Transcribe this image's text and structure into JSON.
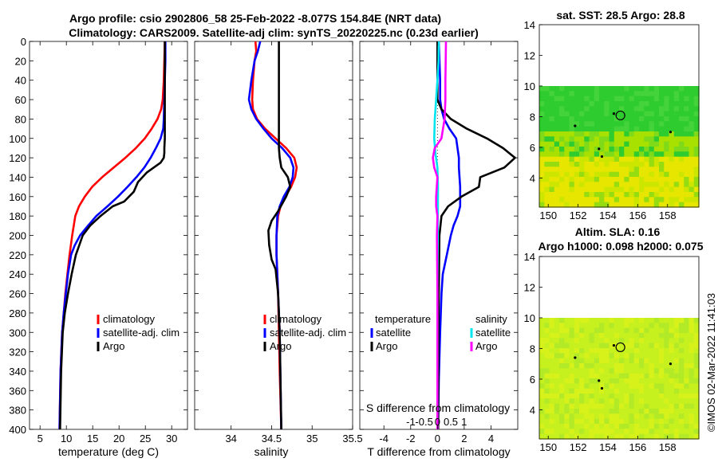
{
  "titles": {
    "line1": "Argo profile: csio 2902806_58 25-Feb-2022 -8.077S 154.84E (NRT data)",
    "line2": "Climatology: CARS2009. Satellite-adj clim: synTS_20220225.nc (0.23d earlier)"
  },
  "timestamp": "©IMOS 02-Mar-2022 11:41:03",
  "colors": {
    "climatology": "#ff0000",
    "satellite": "#0000ff",
    "argo": "#000000",
    "sal_sat": "#00e5ee",
    "sal_argo": "#ff00ff"
  },
  "chart_data": [
    {
      "type": "line",
      "title": "temperature",
      "xlabel": "temperature (deg C)",
      "xlim": [
        3,
        33
      ],
      "xticks": [
        5,
        10,
        15,
        20,
        25,
        30
      ],
      "ylim": [
        0,
        400
      ],
      "yticks": [
        0,
        20,
        40,
        60,
        80,
        100,
        120,
        140,
        160,
        180,
        200,
        220,
        240,
        260,
        280,
        300,
        320,
        340,
        360,
        380,
        400
      ],
      "legend": [
        "climatology",
        "satellite-adj. clim",
        "Argo"
      ],
      "series": [
        {
          "name": "climatology",
          "color": "#ff0000",
          "x": [
            28.7,
            28.6,
            28.5,
            28.3,
            28.0,
            27.3,
            26.2,
            24.9,
            23.2,
            21.2,
            19.0,
            16.8,
            14.9,
            13.5,
            12.4,
            11.7,
            11.1,
            10.6,
            10.2,
            9.8,
            9.5,
            9.2,
            8.9,
            8.7
          ],
          "depth": [
            0,
            20,
            40,
            60,
            70,
            80,
            90,
            100,
            110,
            120,
            130,
            140,
            150,
            160,
            170,
            180,
            200,
            220,
            240,
            260,
            280,
            300,
            340,
            400
          ]
        },
        {
          "name": "satellite-adj. clim",
          "color": "#0000ff",
          "x": [
            28.8,
            28.8,
            28.7,
            28.6,
            28.5,
            28.4,
            27.9,
            27.0,
            26.0,
            24.8,
            23.3,
            21.6,
            19.8,
            17.8,
            15.7,
            14.1,
            12.6,
            11.6,
            10.9,
            10.3,
            9.9,
            9.5,
            9.2,
            8.9,
            8.7
          ],
          "depth": [
            0,
            20,
            40,
            60,
            80,
            90,
            100,
            110,
            120,
            130,
            140,
            150,
            160,
            170,
            180,
            190,
            200,
            210,
            220,
            240,
            260,
            280,
            300,
            340,
            400
          ]
        },
        {
          "name": "Argo",
          "color": "#000000",
          "x": [
            28.7,
            28.7,
            28.7,
            28.7,
            28.6,
            28.6,
            28.5,
            27.9,
            25.3,
            23.6,
            22.8,
            21.0,
            18.8,
            16.5,
            14.5,
            13.1,
            11.8,
            11.0,
            10.3,
            9.7,
            9.3,
            9.0,
            8.8
          ],
          "depth": [
            0,
            40,
            80,
            100,
            110,
            115,
            120,
            125,
            135,
            145,
            155,
            165,
            170,
            180,
            190,
            200,
            220,
            240,
            260,
            280,
            300,
            340,
            400
          ]
        }
      ]
    },
    {
      "type": "line",
      "title": "salinity",
      "xlabel": "salinity",
      "xlim": [
        33.55,
        35.5
      ],
      "xticks": [
        34,
        34.5,
        35,
        35.5
      ],
      "ylim": [
        0,
        400
      ],
      "legend": [
        "climatology",
        "satellite-adj. clim",
        "Argo"
      ],
      "series": [
        {
          "name": "climatology",
          "color": "#ff0000",
          "x": [
            34.3,
            34.31,
            34.29,
            34.27,
            34.26,
            34.27,
            34.32,
            34.42,
            34.55,
            34.68,
            34.78,
            34.81,
            34.79,
            34.74,
            34.67,
            34.61,
            34.58,
            34.56,
            34.56,
            34.57,
            34.58,
            34.59,
            34.6,
            34.61,
            34.62
          ],
          "depth": [
            0,
            10,
            20,
            40,
            60,
            70,
            80,
            90,
            100,
            110,
            120,
            130,
            140,
            150,
            160,
            170,
            180,
            200,
            220,
            240,
            260,
            300,
            340,
            370,
            400
          ]
        },
        {
          "name": "satellite-adj. clim",
          "color": "#0000ff",
          "x": [
            34.36,
            34.33,
            34.29,
            34.25,
            34.22,
            34.25,
            34.31,
            34.4,
            34.5,
            34.63,
            34.73,
            34.77,
            34.76,
            34.72,
            34.65,
            34.6,
            34.57,
            34.56,
            34.56,
            34.57,
            34.58,
            34.6,
            34.61,
            34.62
          ],
          "depth": [
            0,
            10,
            20,
            40,
            60,
            70,
            80,
            90,
            100,
            110,
            120,
            130,
            140,
            150,
            160,
            170,
            180,
            200,
            220,
            240,
            260,
            300,
            350,
            400
          ]
        },
        {
          "name": "Argo",
          "color": "#000000",
          "x": [
            34.59,
            34.59,
            34.59,
            34.59,
            34.6,
            34.62,
            34.7,
            34.73,
            34.68,
            34.58,
            34.5,
            34.46,
            34.47,
            34.5,
            34.55,
            34.58,
            34.6,
            34.61,
            34.62
          ],
          "depth": [
            0,
            40,
            80,
            110,
            120,
            130,
            140,
            150,
            160,
            175,
            185,
            195,
            210,
            225,
            235,
            260,
            300,
            350,
            400
          ]
        }
      ]
    },
    {
      "type": "line",
      "title": "difference from climatology",
      "xlabel": "T difference from climatology",
      "xlabel_top": "S difference from climatology",
      "xlim": [
        -5.8,
        6.0
      ],
      "xticks": [
        -4,
        -2,
        0,
        2,
        4
      ],
      "xticks_top": [
        -1,
        -0.5,
        0,
        0.5,
        1
      ],
      "ylim": [
        0,
        400
      ],
      "legend_titles": [
        "temperature",
        "salinity"
      ],
      "legend": [
        "satellite",
        "Argo",
        "satellite",
        "Argo"
      ],
      "series": [
        {
          "name": "temperature satellite",
          "color": "#0000ff",
          "x": [
            0.1,
            0.2,
            0.2,
            0.3,
            0.5,
            0.9,
            1.4,
            1.6,
            1.6,
            1.7,
            1.7,
            1.5,
            1.2,
            1.0,
            0.7,
            0.4,
            0.3,
            0.2,
            0.1,
            0.05
          ],
          "depth": [
            0,
            40,
            60,
            70,
            80,
            90,
            100,
            120,
            130,
            150,
            170,
            180,
            190,
            200,
            220,
            240,
            260,
            300,
            350,
            400
          ]
        },
        {
          "name": "temperature Argo",
          "color": "#000000",
          "x": [
            0.0,
            0.0,
            0.3,
            1.0,
            2.2,
            3.7,
            4.9,
            5.8,
            5.0,
            3.2,
            3.1,
            1.8,
            0.8,
            0.3,
            0.15,
            0.1,
            0.05
          ],
          "depth": [
            0,
            60,
            70,
            80,
            90,
            100,
            110,
            120,
            130,
            140,
            150,
            160,
            170,
            180,
            200,
            260,
            400
          ]
        },
        {
          "name": "salinity satellite",
          "color": "#00e5ee",
          "x": [
            0.05,
            0.04,
            0.0,
            -0.05,
            -0.1,
            -0.12,
            -0.08,
            0.0,
            0.02,
            0.01,
            0.0,
            0.0,
            0.0,
            0.0
          ],
          "depth": [
            0,
            20,
            40,
            60,
            80,
            100,
            115,
            130,
            150,
            200,
            250,
            300,
            350,
            400
          ]
        },
        {
          "name": "salinity Argo",
          "color": "#ff00ff",
          "x": [
            0.32,
            0.31,
            0.3,
            0.3,
            0.27,
            0.15,
            -0.1,
            -0.17,
            -0.12,
            0.0,
            -0.05,
            -0.05,
            0.0,
            -0.02,
            0.0,
            0.0,
            0.0
          ],
          "depth": [
            0,
            20,
            40,
            60,
            80,
            100,
            110,
            120,
            130,
            140,
            160,
            170,
            180,
            200,
            260,
            320,
            400
          ]
        }
      ]
    },
    {
      "type": "heatmap",
      "title": "sat. SST: 28.5 Argo: 28.8",
      "xticks": [
        150,
        152,
        154,
        156,
        158
      ],
      "yticks": [
        4,
        6,
        8,
        10,
        12,
        14
      ],
      "xlim": [
        149.4,
        160.1
      ],
      "ylim": [
        2.1,
        14
      ],
      "data_extent_lat": [
        2.1,
        10
      ],
      "argo_position": [
        154.84,
        8.08
      ],
      "colors": [
        "#e6e600",
        "#a8e000",
        "#2ecc2e"
      ]
    },
    {
      "type": "heatmap",
      "title": "Altim. SLA: 0.16",
      "subtitle": "Argo h1000: 0.098 h2000: 0.075",
      "xticks": [
        150,
        152,
        154,
        156,
        158
      ],
      "yticks": [
        4,
        6,
        8,
        10,
        12,
        14
      ],
      "xlim": [
        149.4,
        160.1
      ],
      "ylim": [
        2.1,
        14
      ],
      "data_extent_lat": [
        2.1,
        10
      ],
      "argo_position": [
        154.84,
        8.08
      ],
      "colors": [
        "#c6f01e",
        "#b2ea28",
        "#d6f21a"
      ]
    }
  ]
}
